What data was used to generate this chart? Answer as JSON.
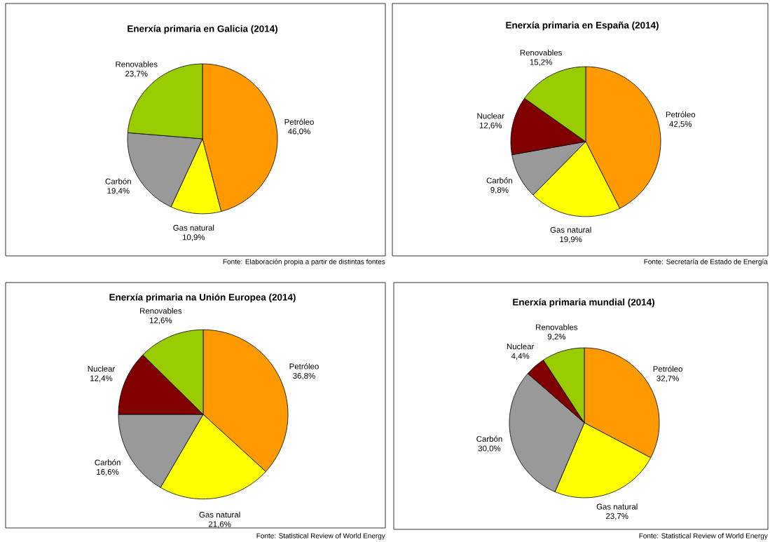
{
  "chart_data": [
    {
      "type": "pie",
      "title": "Enerxía primaria en Galicia (2014)",
      "categories": [
        "Petróleo",
        "Gas natural",
        "Carbón",
        "Renovables"
      ],
      "values": [
        46.0,
        10.9,
        19.4,
        23.7
      ],
      "value_labels": [
        "46,0%",
        "10,9%",
        "19,4%",
        "23,7%"
      ],
      "colors": [
        "#ff9900",
        "#ffff00",
        "#999999",
        "#99cc00"
      ],
      "annotations": [
        "Fonte: Elaboración propia a partir de distintas fontes"
      ]
    },
    {
      "type": "pie",
      "title": "Enerxía primaria en España (2014)",
      "categories": [
        "Petróleo",
        "Gas natural",
        "Carbón",
        "Nuclear",
        "Renovables"
      ],
      "values": [
        42.5,
        19.9,
        9.8,
        12.6,
        15.2
      ],
      "value_labels": [
        "42,5%",
        "19,9%",
        "9,8%",
        "12,6%",
        "15,2%"
      ],
      "colors": [
        "#ff9900",
        "#ffff00",
        "#999999",
        "#800000",
        "#99cc00"
      ],
      "annotations": [
        "Fonte: Secretaría de Estado de Energía"
      ]
    },
    {
      "type": "pie",
      "title": "Enerxía primaria na Unión Europea (2014)",
      "categories": [
        "Petróleo",
        "Gas natural",
        "Carbón",
        "Nuclear",
        "Renovables"
      ],
      "values": [
        36.8,
        21.6,
        16.6,
        12.4,
        12.6
      ],
      "value_labels": [
        "36,8%",
        "21,6%",
        "16,6%",
        "12,4%",
        "12,6%"
      ],
      "colors": [
        "#ff9900",
        "#ffff00",
        "#999999",
        "#800000",
        "#99cc00"
      ],
      "annotations": [
        "Fonte: Statistical Review of World Energy"
      ]
    },
    {
      "type": "pie",
      "title": "Enerxía primaria mundial (2014)",
      "categories": [
        "Petróleo",
        "Gas natural",
        "Carbón",
        "Nuclear",
        "Renovables"
      ],
      "values": [
        32.7,
        23.7,
        30.0,
        4.4,
        9.2
      ],
      "value_labels": [
        "32,7%",
        "23,7%",
        "30,0%",
        "4,4%",
        "9,2%"
      ],
      "colors": [
        "#ff9900",
        "#ffff00",
        "#999999",
        "#800000",
        "#99cc00"
      ],
      "annotations": [
        "Fonte: Statistical Review of World Energy"
      ]
    }
  ]
}
